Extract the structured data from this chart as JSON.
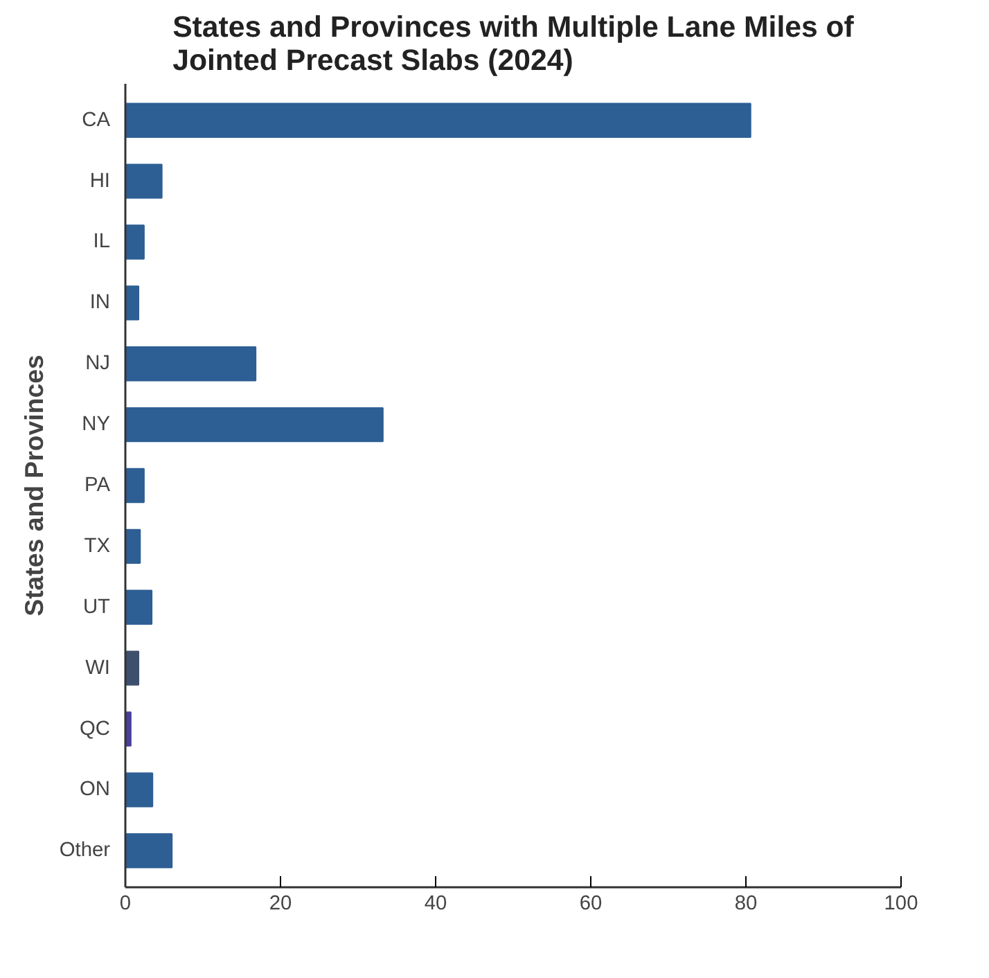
{
  "chart_data": {
    "type": "bar",
    "orientation": "horizontal",
    "title": "States and Provinces with Multiple Lane Miles of Jointed Precast Slabs (2024)",
    "ylabel": "States and Provinces",
    "categories": [
      "CA",
      "HI",
      "IL",
      "IN",
      "NJ",
      "NY",
      "PA",
      "TX",
      "UT",
      "WI",
      "QC",
      "ON",
      "Other"
    ],
    "values": [
      80.6,
      4.7,
      2.4,
      1.7,
      16.8,
      33.2,
      2.4,
      1.9,
      3.4,
      1.7,
      0.7,
      3.5,
      6
    ],
    "colors": [
      "#2d5f94",
      "#2d5f94",
      "#2d5f94",
      "#2d5f94",
      "#2d5f94",
      "#2d5f94",
      "#2d5f94",
      "#2d5f94",
      "#2d5f94",
      "#3e4f6e",
      "#4a3f9a",
      "#2d5f94",
      "#2d5f94"
    ],
    "xlim": [
      0,
      100
    ],
    "xticks": [
      0,
      20,
      40,
      60,
      80,
      100
    ],
    "grid": false
  }
}
